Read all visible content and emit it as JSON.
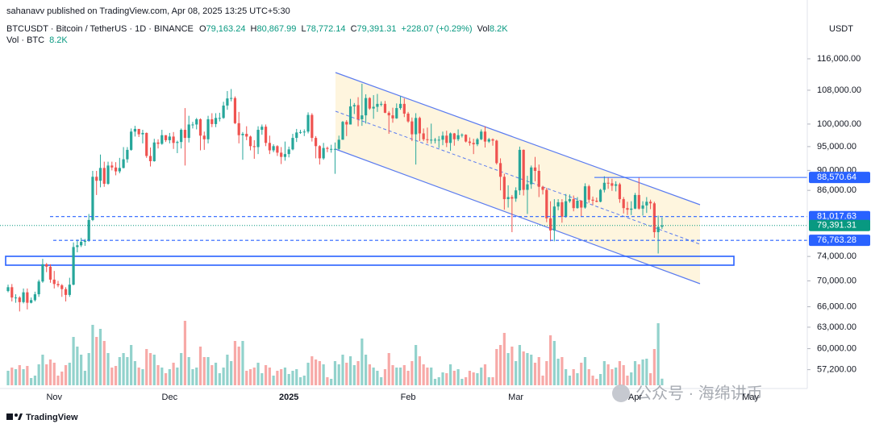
{
  "header": {
    "publisher": "sahanavv published on TradingView.com, Apr 08, 2025 13:25 UTC+5:30",
    "symbol": "BTCUSDT · Bitcoin / TetherUS · 1D · BINANCE",
    "o": "O",
    "open": "79,163.24",
    "h": "H",
    "high": "80,867.99",
    "l": "L",
    "low": "78,772.14",
    "c": "C",
    "close": "79,391.31",
    "change": "+228.07 (+0.29%)",
    "vol": "Vol",
    "volume": "8.2K",
    "vol_title": "Vol · BTC",
    "vol_value": "8.2K"
  },
  "footer": {
    "brand": "TradingView"
  },
  "watermark": "公众号 · 海绵讲币",
  "chart_data": {
    "type": "candlestick",
    "y_axis_label": "USDT",
    "log_scale": true,
    "grid": false,
    "up_color": "#26a69a",
    "down_color": "#ef5350",
    "ylim": [
      54800,
      132600
    ],
    "yticks": [
      {
        "value": 116000,
        "label": "116,000.00"
      },
      {
        "value": 108000,
        "label": "108,000.00"
      },
      {
        "value": 100000,
        "label": "100,000.00"
      },
      {
        "value": 95000,
        "label": "95,000.00"
      },
      {
        "value": 90000,
        "label": "90,000.00"
      },
      {
        "value": 86000,
        "label": "86,000.00"
      },
      {
        "value": 74000,
        "label": "74,000.00"
      },
      {
        "value": 70000,
        "label": "70,000.00"
      },
      {
        "value": 66000,
        "label": "66,000.00"
      },
      {
        "value": 63000,
        "label": "63,000.00"
      },
      {
        "value": 60000,
        "label": "60,000.00"
      },
      {
        "value": 57200,
        "label": "57,200.00"
      }
    ],
    "levels": [
      {
        "value": 88570.64,
        "label": "88,570.64",
        "style": "solid",
        "color": "#2962ff"
      },
      {
        "value": 81017.63,
        "label": "81,017.63",
        "style": "dashed",
        "color": "#2962ff"
      },
      {
        "value": 76763.28,
        "label": "76,763.28",
        "style": "dashed",
        "color": "#2962ff"
      }
    ],
    "last_price": {
      "value": 79391.31,
      "label": "79,391.31",
      "color": "#089981"
    },
    "after_label": "May",
    "volume_lim": [
      0,
      110000
    ],
    "categories": [
      null,
      null,
      null,
      null,
      null,
      null,
      null,
      null,
      null,
      null,
      null,
      null,
      "Nov",
      null,
      null,
      null,
      null,
      null,
      null,
      null,
      null,
      null,
      null,
      null,
      null,
      null,
      null,
      null,
      null,
      null,
      null,
      null,
      null,
      null,
      null,
      null,
      null,
      null,
      null,
      null,
      null,
      null,
      "Dec",
      null,
      null,
      null,
      null,
      null,
      null,
      null,
      null,
      null,
      null,
      null,
      null,
      null,
      null,
      null,
      null,
      null,
      null,
      null,
      null,
      null,
      null,
      null,
      null,
      null,
      null,
      null,
      null,
      null,
      null,
      "2025",
      null,
      null,
      null,
      null,
      null,
      null,
      null,
      null,
      null,
      null,
      null,
      null,
      null,
      null,
      null,
      null,
      null,
      null,
      null,
      null,
      null,
      null,
      null,
      null,
      null,
      null,
      null,
      null,
      null,
      null,
      "Feb",
      null,
      null,
      null,
      null,
      null,
      null,
      null,
      null,
      null,
      null,
      null,
      null,
      null,
      null,
      null,
      null,
      null,
      null,
      null,
      null,
      null,
      null,
      null,
      null,
      null,
      null,
      null,
      "Mar",
      null,
      null,
      null,
      null,
      null,
      null,
      null,
      null,
      null,
      null,
      null,
      null,
      null,
      null,
      null,
      null,
      null,
      null,
      null,
      null,
      null,
      null,
      null,
      null,
      null,
      null,
      null,
      null,
      null,
      null,
      "Apr",
      null,
      null,
      null,
      null,
      null,
      null,
      null
    ],
    "open": [
      68400,
      69000,
      67400,
      67400,
      66700,
      68200,
      66600,
      67000,
      67900,
      69900,
      72700,
      72300,
      70200,
      69500,
      69300,
      68700,
      67800,
      69400,
      75600,
      75900,
      76500,
      76700,
      80400,
      88700,
      87900,
      90500,
      87300,
      91000,
      90600,
      89800,
      90500,
      92300,
      94300,
      98300,
      98900,
      97700,
      98000,
      93000,
      91900,
      95900,
      95600,
      97500,
      96400,
      97200,
      95800,
      96000,
      98700,
      96900,
      99900,
      99900,
      101100,
      97400,
      96600,
      101100,
      100000,
      101400,
      101400,
      104300,
      106000,
      106100,
      100200,
      97500,
      97800,
      97200,
      95100,
      94900,
      98700,
      99400,
      95800,
      94200,
      95100,
      93700,
      92800,
      93400,
      94400,
      96900,
      98100,
      98200,
      98300,
      102100,
      96900,
      95100,
      92500,
      94700,
      94500,
      94500,
      94500,
      96500,
      100500,
      99900,
      104100,
      104400,
      101100,
      102000,
      106100,
      103600,
      104000,
      104700,
      104700,
      102600,
      102000,
      101300,
      103700,
      104700,
      102400,
      100600,
      97700,
      101400,
      97900,
      96600,
      96500,
      96500,
      96500,
      96500,
      97400,
      95800,
      97900,
      96600,
      97500,
      97600,
      96100,
      95800,
      95500,
      96600,
      98300,
      96100,
      96600,
      96300,
      91500,
      88700,
      84300,
      84700,
      84400,
      86000,
      94300,
      86100,
      87200,
      90600,
      89900,
      86700,
      86100,
      80700,
      78500,
      82900,
      83700,
      81000,
      83900,
      84300,
      82600,
      84000,
      82700,
      86800,
      84200,
      84000,
      83800,
      86100,
      87500,
      87400,
      86900,
      87200,
      84300,
      82600,
      82300,
      82500,
      85100,
      82500,
      83100,
      83800,
      83500,
      78200,
      79163.24
    ],
    "high": [
      69400,
      69500,
      67900,
      67600,
      68800,
      68800,
      67400,
      68300,
      70200,
      73600,
      72900,
      72700,
      71600,
      70000,
      69500,
      69000,
      70500,
      76400,
      76900,
      77200,
      77000,
      81500,
      89900,
      89900,
      93300,
      91800,
      91800,
      91800,
      91700,
      92600,
      94900,
      94900,
      99000,
      99600,
      98900,
      98700,
      98100,
      94800,
      96700,
      96600,
      98700,
      97500,
      98000,
      98200,
      96300,
      99000,
      103700,
      101900,
      100500,
      101400,
      101300,
      98300,
      101900,
      102500,
      102500,
      102600,
      105200,
      107800,
      108300,
      106500,
      102800,
      98200,
      99500,
      97400,
      96400,
      99500,
      99900,
      99900,
      97400,
      95500,
      95300,
      94900,
      96100,
      95000,
      97800,
      98900,
      98700,
      98800,
      102700,
      102500,
      97300,
      95300,
      95800,
      95000,
      95400,
      95900,
      97400,
      100700,
      100900,
      105900,
      104900,
      106300,
      109600,
      107000,
      106300,
      106800,
      107100,
      105300,
      105400,
      103000,
      103800,
      104800,
      106500,
      106000,
      102800,
      101500,
      102500,
      101700,
      99000,
      99200,
      100100,
      96900,
      97300,
      98300,
      98500,
      98100,
      98000,
      98800,
      97900,
      97700,
      97000,
      96700,
      96900,
      98800,
      99500,
      96900,
      96800,
      96500,
      92500,
      89300,
      87000,
      85100,
      86600,
      95000,
      94400,
      88900,
      91000,
      92800,
      91200,
      86900,
      86500,
      83900,
      84300,
      84300,
      84300,
      85300,
      85200,
      85000,
      84700,
      84100,
      87400,
      87100,
      84800,
      84600,
      86300,
      88800,
      88500,
      88300,
      87800,
      87500,
      84700,
      83800,
      83900,
      85500,
      88500,
      83900,
      84700,
      84200,
      83800,
      81200,
      80867.99
    ],
    "low": [
      68200,
      66800,
      66600,
      65300,
      66500,
      65600,
      66500,
      66800,
      67500,
      69700,
      71400,
      69700,
      68800,
      69000,
      67500,
      66800,
      67500,
      69300,
      74700,
      75600,
      75800,
      76500,
      80200,
      85100,
      86600,
      86700,
      87100,
      90000,
      89000,
      89400,
      90400,
      91600,
      94100,
      97200,
      97100,
      95700,
      92600,
      90800,
      91800,
      94600,
      95400,
      96000,
      95700,
      94500,
      93600,
      94600,
      91000,
      95900,
      99000,
      98800,
      94200,
      94300,
      95700,
      99300,
      99300,
      100600,
      101200,
      103300,
      105300,
      100000,
      95700,
      92200,
      96400,
      94200,
      92400,
      93400,
      97600,
      95100,
      93400,
      93800,
      93000,
      91300,
      92000,
      92700,
      94200,
      96000,
      97800,
      97300,
      97900,
      96100,
      92500,
      91200,
      92200,
      93800,
      93700,
      89300,
      94300,
      96500,
      97300,
      99900,
      102300,
      99500,
      99600,
      100100,
      103300,
      101200,
      102800,
      104100,
      102500,
      97800,
      100300,
      101200,
      103300,
      101600,
      100300,
      96200,
      91200,
      96200,
      96200,
      95700,
      95600,
      95700,
      94700,
      95300,
      94900,
      94100,
      95200,
      96200,
      97000,
      95900,
      95200,
      93400,
      95100,
      96400,
      94800,
      95800,
      95200,
      91200,
      86000,
      82300,
      82700,
      78200,
      83800,
      85100,
      85000,
      81500,
      86300,
      87800,
      84700,
      85200,
      80000,
      76600,
      76600,
      82200,
      79900,
      80800,
      83600,
      82000,
      82500,
      81100,
      82500,
      83600,
      83200,
      83700,
      83700,
      85600,
      86300,
      85900,
      85800,
      83600,
      81600,
      81300,
      81300,
      82400,
      82300,
      81200,
      81700,
      82400,
      77200,
      74500,
      78772.14
    ],
    "close": [
      69000,
      67400,
      67400,
      66700,
      68200,
      66600,
      67000,
      67900,
      69900,
      72700,
      72300,
      70200,
      69500,
      69300,
      68700,
      67800,
      69400,
      75600,
      75900,
      76500,
      76700,
      80400,
      88700,
      87900,
      90500,
      87300,
      91000,
      90600,
      89800,
      90500,
      92300,
      94300,
      98300,
      98900,
      97700,
      98000,
      93000,
      91900,
      95900,
      95600,
      97500,
      96400,
      97200,
      95800,
      96000,
      98700,
      96900,
      99900,
      99900,
      101100,
      97400,
      96600,
      101100,
      100000,
      101400,
      101400,
      104300,
      106000,
      106100,
      100200,
      97500,
      97800,
      97200,
      95100,
      94900,
      98700,
      99400,
      95800,
      94200,
      95100,
      93700,
      92800,
      93400,
      94400,
      96900,
      98100,
      98200,
      98300,
      102100,
      96900,
      95100,
      92500,
      94700,
      94500,
      94500,
      94500,
      96500,
      100500,
      99900,
      104100,
      104400,
      101100,
      102000,
      106100,
      103600,
      104000,
      104700,
      104700,
      102600,
      102000,
      101300,
      103700,
      104700,
      102400,
      100600,
      97700,
      101400,
      97900,
      96600,
      96500,
      96500,
      96500,
      96500,
      97400,
      95800,
      97900,
      96600,
      97500,
      97600,
      96100,
      95800,
      95500,
      96600,
      98300,
      96100,
      96600,
      96300,
      91500,
      88700,
      84300,
      84700,
      84400,
      86000,
      94300,
      86100,
      87200,
      90600,
      89900,
      86700,
      86100,
      80700,
      78500,
      82900,
      83700,
      81000,
      83900,
      84300,
      82600,
      84000,
      82700,
      86800,
      84200,
      84000,
      83800,
      86100,
      87500,
      87400,
      86900,
      87200,
      84300,
      82600,
      82300,
      82500,
      85100,
      82500,
      83100,
      83800,
      83500,
      78200,
      79163.24,
      79391.31
    ],
    "volume": [
      18000,
      22000,
      20000,
      25000,
      20000,
      24000,
      9000,
      12000,
      26000,
      38000,
      26000,
      32000,
      28000,
      12000,
      17000,
      25000,
      28000,
      60000,
      48000,
      38000,
      18000,
      40000,
      75000,
      60000,
      70000,
      55000,
      40000,
      22000,
      24000,
      35000,
      40000,
      35000,
      50000,
      30000,
      22000,
      20000,
      45000,
      40000,
      38000,
      25000,
      22000,
      15000,
      20000,
      28000,
      22000,
      40000,
      80000,
      35000,
      20000,
      22000,
      48000,
      35000,
      35000,
      25000,
      28000,
      15000,
      22000,
      38000,
      30000,
      55000,
      48000,
      55000,
      18000,
      20000,
      22000,
      28000,
      15000,
      25000,
      22000,
      12000,
      18000,
      20000,
      22000,
      14000,
      18000,
      20000,
      10000,
      12000,
      28000,
      36000,
      32000,
      30000,
      26000,
      10000,
      8000,
      30000,
      26000,
      38000,
      28000,
      36000,
      25000,
      30000,
      58000,
      38000,
      26000,
      22000,
      18000,
      10000,
      20000,
      40000,
      25000,
      22000,
      22000,
      25000,
      18000,
      30000,
      50000,
      36000,
      26000,
      22000,
      22000,
      8000,
      10000,
      16000,
      15000,
      26000,
      18000,
      20000,
      8000,
      10000,
      18000,
      16000,
      15000,
      22000,
      26000,
      10000,
      10000,
      45000,
      50000,
      65000,
      40000,
      48000,
      30000,
      50000,
      42000,
      40000,
      38000,
      28000,
      35000,
      12000,
      30000,
      62000,
      55000,
      33000,
      35000,
      20000,
      12000,
      20000,
      15000,
      28000,
      35000,
      20000,
      12000,
      8000,
      14000,
      30000,
      26000,
      20000,
      22000,
      30000,
      25000,
      12000,
      16000,
      30000,
      26000,
      32000,
      33000,
      15000,
      45000,
      77000,
      8200
    ]
  }
}
